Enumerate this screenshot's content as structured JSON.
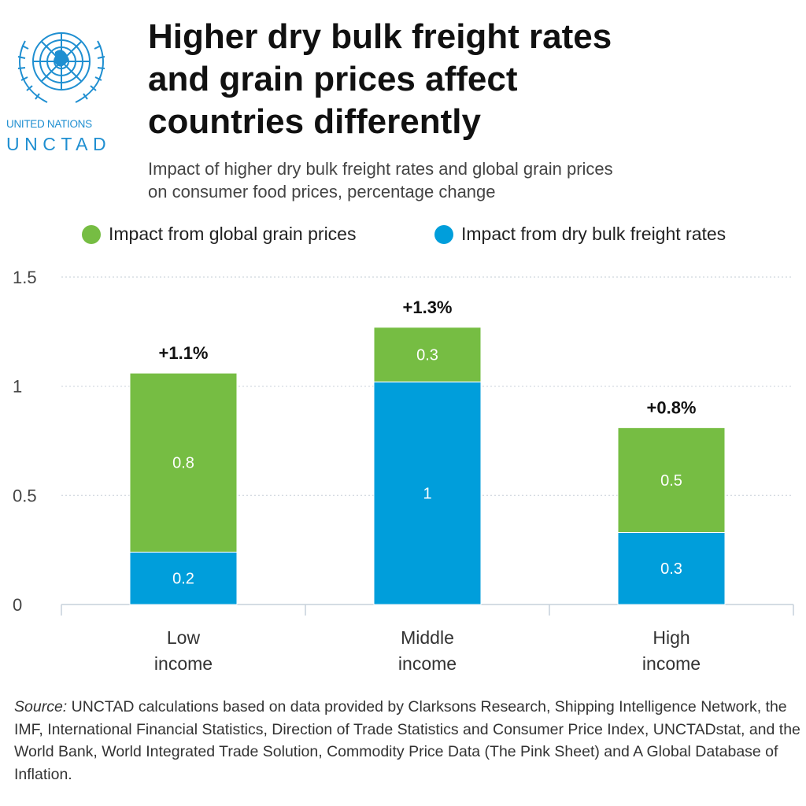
{
  "logo": {
    "org_line": "UNITED NATIONS",
    "org_name": "UNCTAD",
    "brand_color": "#1f8fd1",
    "icon": "un-emblem-icon"
  },
  "header": {
    "title_lines": [
      "Higher dry bulk freight rates",
      "and grain prices affect",
      "countries differently"
    ],
    "subtitle_lines": [
      "Impact of higher dry bulk freight rates and global grain prices",
      "on consumer food prices, percentage change"
    ]
  },
  "legend": [
    {
      "label": "Impact from global grain prices",
      "color": "#76bd43"
    },
    {
      "label": "Impact from dry bulk freight rates",
      "color": "#009edb"
    }
  ],
  "chart_data": {
    "type": "bar",
    "stacked": true,
    "categories": [
      [
        "Low",
        "income"
      ],
      [
        "Middle",
        "income"
      ],
      [
        "High",
        "income"
      ]
    ],
    "series": [
      {
        "name": "Impact from dry bulk freight rates",
        "color": "#009edb",
        "values": [
          0.24,
          1.02,
          0.33
        ],
        "labels": [
          "0.2",
          "1",
          "0.3"
        ]
      },
      {
        "name": "Impact from global grain prices",
        "color": "#76bd43",
        "values": [
          0.82,
          0.25,
          0.48
        ],
        "labels": [
          "0.8",
          "0.3",
          "0.5"
        ]
      }
    ],
    "totals": [
      "+1.1%",
      "+1.3%",
      "+0.8%"
    ],
    "ylim": [
      0,
      1.5
    ],
    "yticks": [
      0,
      0.5,
      1,
      1.5
    ],
    "ytick_labels": [
      "0",
      "0.5",
      "1",
      "1.5"
    ],
    "grid": true,
    "legend_position": "top"
  },
  "source": {
    "prefix": "Source:",
    "text": " UNCTAD calculations based on data provided by Clarksons Research, Shipping Intelligence Network, the IMF, International Financial Statistics, Direction of Trade Statistics and Consumer Price Index, UNCTADstat, and the World Bank, World Integrated Trade Solution, Commodity Price Data (The Pink Sheet) and A Global Database of Inflation."
  }
}
